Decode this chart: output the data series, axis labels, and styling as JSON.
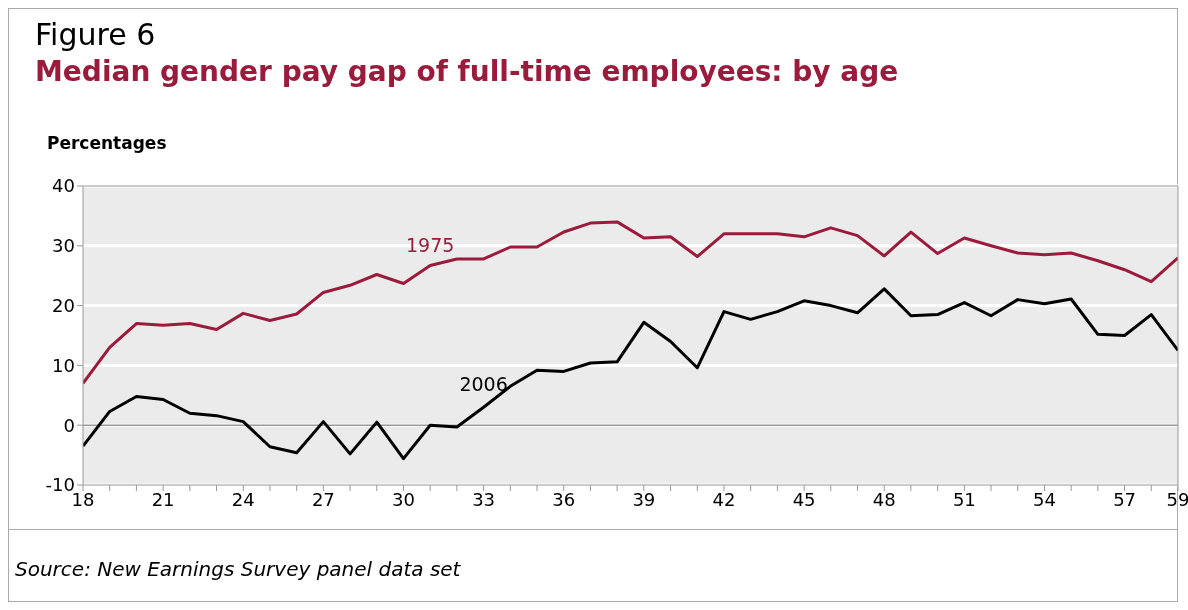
{
  "chart_data": {
    "type": "line",
    "title": "Figure 6",
    "subtitle": "Median gender pay gap of full-time employees: by age",
    "ylabel": "Percentages",
    "x": [
      18,
      19,
      20,
      21,
      22,
      23,
      24,
      25,
      26,
      27,
      28,
      29,
      30,
      31,
      32,
      33,
      34,
      35,
      36,
      37,
      38,
      39,
      40,
      41,
      42,
      43,
      44,
      45,
      46,
      47,
      48,
      49,
      50,
      51,
      52,
      53,
      54,
      55,
      56,
      57,
      58,
      59
    ],
    "series": [
      {
        "name": "1975",
        "color": "#9b1b3c",
        "values": [
          7,
          13,
          17,
          16.7,
          17,
          16,
          18.7,
          17.5,
          18.6,
          22.2,
          23.4,
          25.2,
          23.7,
          26.7,
          27.8,
          27.8,
          29.8,
          29.8,
          32.3,
          33.8,
          34,
          31.3,
          31.5,
          28.2,
          32,
          32,
          32,
          31.5,
          33,
          31.7,
          28.3,
          32.3,
          28.7,
          31.3,
          30,
          28.8,
          28.5,
          28.8,
          27.5,
          26,
          24,
          28
        ]
      },
      {
        "name": "2006",
        "color": "#000000",
        "values": [
          -3.5,
          2.3,
          4.8,
          4.3,
          2,
          1.6,
          0.6,
          -3.6,
          -4.6,
          0.6,
          -4.8,
          0.5,
          -5.6,
          0,
          -0.3,
          3,
          6.5,
          9.2,
          9,
          10.4,
          10.6,
          17.2,
          14,
          9.6,
          19,
          17.7,
          19,
          20.8,
          20,
          18.8,
          22.8,
          18.3,
          18.5,
          20.5,
          18.3,
          21,
          20.3,
          21.1,
          15.2,
          15,
          18.5,
          12.5
        ]
      }
    ],
    "xlim": [
      18,
      59
    ],
    "ylim": [
      -10,
      40
    ],
    "yticks": [
      -10,
      0,
      10,
      20,
      30,
      40
    ],
    "xticks": [
      18,
      {
        "value": 19,
        "label": null
      },
      {
        "value": 20,
        "label": null
      },
      21,
      {
        "value": 22,
        "label": null
      },
      {
        "value": 23,
        "label": null
      },
      24,
      {
        "value": 25,
        "label": null
      },
      {
        "value": 26,
        "label": null
      },
      27,
      {
        "value": 28,
        "label": null
      },
      {
        "value": 29,
        "label": null
      },
      30,
      {
        "value": 31,
        "label": null
      },
      {
        "value": 32,
        "label": null
      },
      33,
      {
        "value": 34,
        "label": null
      },
      {
        "value": 35,
        "label": null
      },
      36,
      {
        "value": 37,
        "label": null
      },
      {
        "value": 38,
        "label": null
      },
      39,
      {
        "value": 40,
        "label": null
      },
      {
        "value": 41,
        "label": null
      },
      42,
      {
        "value": 43,
        "label": null
      },
      {
        "value": 44,
        "label": null
      },
      45,
      {
        "value": 46,
        "label": null
      },
      {
        "value": 47,
        "label": null
      },
      48,
      {
        "value": 49,
        "label": null
      },
      {
        "value": 50,
        "label": null
      },
      51,
      {
        "value": 52,
        "label": null
      },
      {
        "value": 53,
        "label": null
      },
      54,
      {
        "value": 55,
        "label": null
      },
      {
        "value": 56,
        "label": null
      },
      57,
      {
        "value": 58,
        "label": null
      },
      59
    ],
    "ref_lines": [
      {
        "axis": "y",
        "value": 0,
        "color": "#999999"
      }
    ],
    "grid": "y",
    "legend": false,
    "marker": "none",
    "line_style": "solid",
    "annotations": [
      "Source: New Earnings Survey panel data set"
    ]
  }
}
